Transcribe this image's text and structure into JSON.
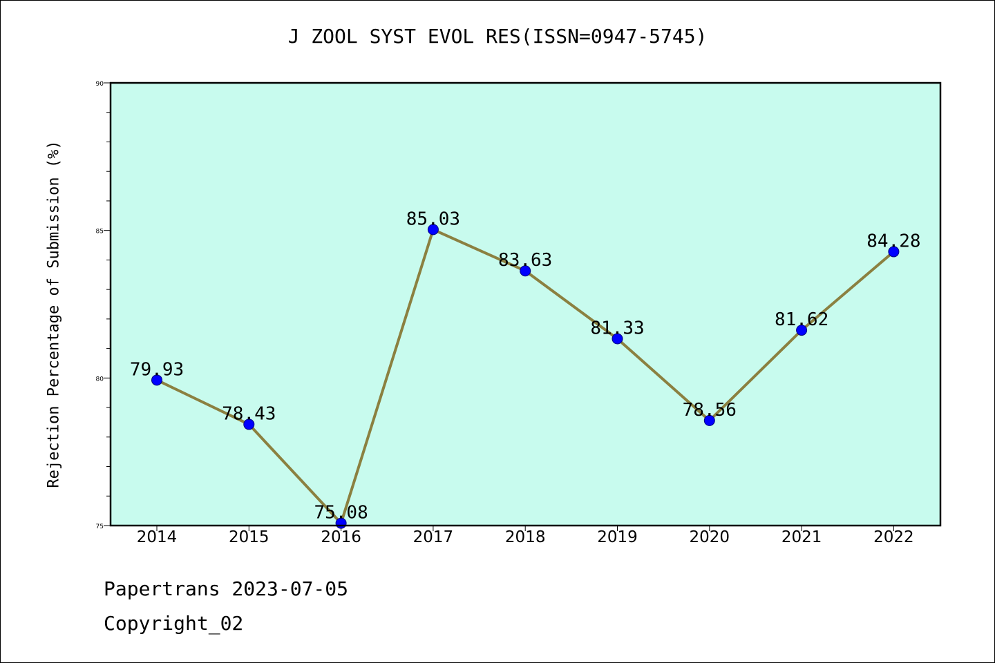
{
  "chart_data": {
    "type": "line",
    "title": "J ZOOL SYST EVOL RES(ISSN=0947-5745)",
    "xlabel": "",
    "ylabel": "Rejection Percentage of Submission (%)",
    "categories": [
      "2014",
      "2015",
      "2016",
      "2017",
      "2018",
      "2019",
      "2020",
      "2021",
      "2022"
    ],
    "series": [
      {
        "values": [
          79.93,
          78.43,
          75.08,
          85.03,
          83.63,
          81.33,
          78.56,
          81.62,
          84.28
        ],
        "labels": [
          "79.93",
          "78.43",
          "75.08",
          "85.03",
          "83.63",
          "81.33",
          "78.56",
          "81.62",
          "84.28"
        ],
        "line_color": "#8b8040",
        "marker_color": "#0000ff"
      }
    ],
    "ylim": [
      75,
      90
    ],
    "yticks": [
      "75",
      "80",
      "85",
      "90"
    ],
    "plot_background": "#c8fbee",
    "grid": false,
    "legend": "none"
  },
  "footer": {
    "line1": "Papertrans 2023-07-05",
    "line2": "Copyright_02"
  }
}
